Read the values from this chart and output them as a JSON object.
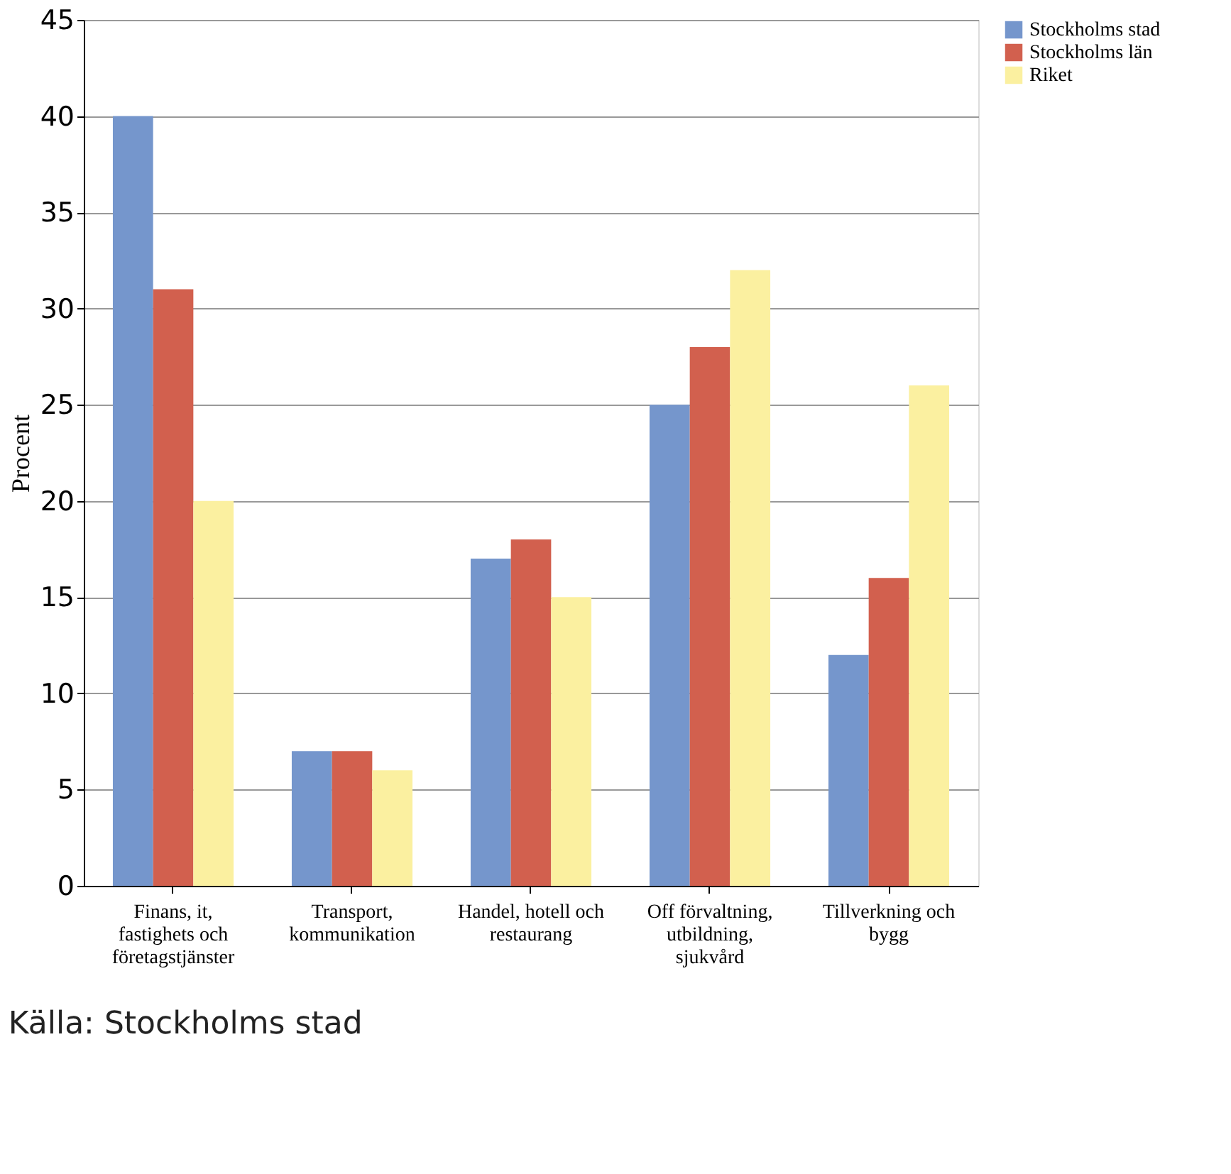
{
  "chart_data": {
    "type": "bar",
    "ylabel": "Procent",
    "categories": [
      "Finans, it, fastighets och företagstjänster",
      "Transport, kommunikation",
      "Handel, hotell och restaurang",
      "Off förvaltning, utbildning, sjukvård",
      "Tillverkning och bygg"
    ],
    "series": [
      {
        "name": "Stockholms stad",
        "color": "#7596cc",
        "values": [
          40,
          7,
          17,
          25,
          12
        ]
      },
      {
        "name": "Stockholms län",
        "color": "#d2604e",
        "values": [
          31,
          7,
          18,
          28,
          16
        ]
      },
      {
        "name": "Riket",
        "color": "#fbf0a0",
        "values": [
          20,
          6,
          15,
          32,
          26
        ]
      }
    ],
    "ylim": [
      0,
      45
    ],
    "yticks": [
      0,
      5,
      10,
      15,
      20,
      25,
      30,
      35,
      40,
      45
    ],
    "grid": "y",
    "legend": "right",
    "annotations": [
      "Källa: Stockholms stad"
    ]
  }
}
